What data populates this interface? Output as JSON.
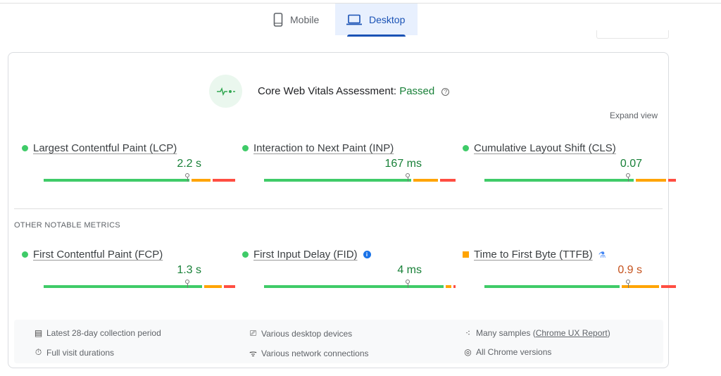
{
  "tabs": [
    {
      "label": "Mobile",
      "icon": "phone-icon",
      "selected": false
    },
    {
      "label": "Desktop",
      "icon": "laptop-icon",
      "selected": true
    }
  ],
  "assessment": {
    "label": "Core Web Vitals Assessment:",
    "status": "Passed",
    "status_color": "#188038",
    "help": "?",
    "expand": "Expand view"
  },
  "core_metrics": [
    {
      "name": "Largest Contentful Paint (LCP)",
      "value": "2.2 s",
      "rating": "good",
      "distribution": [
        78,
        10,
        12
      ],
      "marker_pct": 75
    },
    {
      "name": "Interaction to Next Paint (INP)",
      "value": "167 ms",
      "rating": "good",
      "distribution": [
        77,
        13,
        8
      ],
      "marker_pct": 75
    },
    {
      "name": "Cumulative Layout Shift (CLS)",
      "value": "0.07",
      "rating": "good",
      "distribution": [
        78,
        16,
        4
      ],
      "marker_pct": 75
    }
  ],
  "other_heading": "OTHER NOTABLE METRICS",
  "other_metrics": [
    {
      "name": "First Contentful Paint (FCP)",
      "value": "1.3 s",
      "rating": "good",
      "distribution": [
        83,
        9,
        6
      ],
      "marker_pct": 75
    },
    {
      "name": "First Input Delay (FID)",
      "value": "4 ms",
      "rating": "good",
      "distribution": [
        94,
        3,
        1
      ],
      "marker_pct": 75,
      "badge": "i"
    },
    {
      "name": "Time to First Byte (TTFB)",
      "value": "0.9 s",
      "rating": "needs-improvement",
      "distribution": [
        72,
        20,
        8
      ],
      "marker_pct": 75,
      "badge": "experimental-flask-icon"
    }
  ],
  "colors": {
    "good": "#3fcb68",
    "needs": "#ffa400",
    "poor": "#ff4e42",
    "value_good": "#188038",
    "value_ni": "#c5521d"
  },
  "footer": {
    "period": "Latest 28-day collection period",
    "durations": "Full visit durations",
    "devices": "Various desktop devices",
    "network": "Various network connections",
    "samples_prefix": "Many samples (",
    "samples_link": "Chrome UX Report",
    "samples_suffix": ")",
    "versions": "All Chrome versions"
  }
}
